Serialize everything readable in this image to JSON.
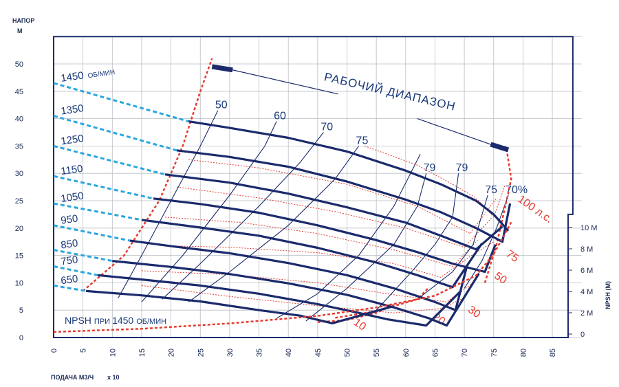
{
  "chart_data": {
    "type": "line",
    "title": "",
    "ylabel_line1": "НАПОР",
    "ylabel_line2": "М",
    "xlabel": "ПОДАЧА М3/Ч",
    "xlabel_multiplier": "x 10",
    "npsh_axis_label": "NPSH (M)",
    "xlim": [
      0,
      90
    ],
    "ylim": [
      0,
      55
    ],
    "x_ticks": [
      0,
      5,
      10,
      15,
      20,
      25,
      30,
      35,
      40,
      45,
      50,
      55,
      60,
      65,
      70,
      75,
      80,
      85
    ],
    "y_ticks": [
      0,
      5,
      10,
      15,
      20,
      25,
      30,
      35,
      40,
      45,
      50
    ],
    "npsh_ticks": [
      {
        "value": 0,
        "label": "0"
      },
      {
        "value": 2,
        "label": "2 M"
      },
      {
        "value": 4,
        "label": "4 M"
      },
      {
        "value": 6,
        "label": "6 M"
      },
      {
        "value": 8,
        "label": "8 M"
      },
      {
        "value": 10,
        "label": "10 M"
      }
    ],
    "grid": true,
    "speed_unit": "ОБ/МИН",
    "series": [
      {
        "name": "1450",
        "dashed_x": [
          0,
          23
        ],
        "dashed_y": [
          46.5,
          39.5
        ],
        "x": [
          23,
          30,
          40,
          50,
          60,
          66,
          72,
          75,
          77.5
        ],
        "y": [
          39.5,
          38.3,
          36.5,
          34,
          30.5,
          28,
          25,
          22.5,
          19.5
        ]
      },
      {
        "name": "1350",
        "dashed_x": [
          0,
          21
        ],
        "dashed_y": [
          40.5,
          34.2
        ],
        "x": [
          21,
          30,
          40,
          50,
          60,
          66,
          72,
          76.5,
          77.8
        ],
        "y": [
          34.2,
          33,
          31.2,
          28.5,
          25.2,
          22.9,
          20,
          17.5,
          24.5
        ]
      },
      {
        "name": "1250",
        "dashed_x": [
          0,
          19
        ],
        "dashed_y": [
          35,
          29.8
        ],
        "x": [
          19,
          30,
          40,
          50,
          60,
          66,
          72,
          76.5
        ],
        "y": [
          29.8,
          28.3,
          26.3,
          23.8,
          21,
          18.6,
          16.1,
          20.3
        ]
      },
      {
        "name": "1150",
        "dashed_x": [
          0,
          17
        ],
        "dashed_y": [
          29.5,
          25.4
        ],
        "x": [
          17,
          25,
          35,
          45,
          55,
          62,
          68,
          73.5,
          75.3
        ],
        "y": [
          25.4,
          24.4,
          22.8,
          20.5,
          17.8,
          15.6,
          13.5,
          12,
          17
        ]
      },
      {
        "name": "1050",
        "dashed_x": [
          0,
          15
        ],
        "dashed_y": [
          24.5,
          21.5
        ],
        "x": [
          15,
          25,
          35,
          45,
          55,
          62,
          68,
          73
        ],
        "y": [
          21.5,
          20.1,
          18.6,
          16.4,
          13.7,
          11.4,
          9.2,
          17.2
        ]
      },
      {
        "name": "950",
        "dashed_x": [
          0,
          13
        ],
        "dashed_y": [
          20.5,
          17.7
        ],
        "x": [
          13,
          20,
          30,
          40,
          50,
          58,
          65,
          68.5,
          70.5
        ],
        "y": [
          17.7,
          16.7,
          15.4,
          13.6,
          11.4,
          9,
          6.5,
          5,
          13.3
        ]
      },
      {
        "name": "850",
        "dashed_x": [
          0,
          10
        ],
        "dashed_y": [
          16,
          14
        ],
        "x": [
          10,
          20,
          30,
          40,
          50,
          58,
          64,
          67,
          72.5
        ],
        "y": [
          14,
          12.9,
          11.6,
          9.9,
          7.8,
          5.5,
          3.5,
          2.2,
          11.7
        ]
      },
      {
        "name": "750",
        "dashed_x": [
          0,
          7.5
        ],
        "dashed_y": [
          13,
          11.4
        ],
        "x": [
          7.5,
          15,
          25,
          35,
          45,
          52,
          57,
          63.5,
          69.5
        ],
        "y": [
          11.4,
          10.6,
          9.5,
          8,
          6.1,
          4.5,
          3.3,
          2.2,
          8.6
        ]
      },
      {
        "name": "650",
        "dashed_x": [
          0,
          5.5
        ],
        "dashed_y": [
          9.5,
          8.5
        ],
        "x": [
          5.5,
          15,
          25,
          35,
          42,
          47.5,
          57.5
        ],
        "y": [
          8.5,
          7.7,
          6.6,
          5,
          4,
          2.6,
          5.6
        ]
      }
    ],
    "efficiency_curves": [
      {
        "label": "50",
        "x": [
          11,
          15,
          20,
          25,
          28
        ],
        "y": [
          7.2,
          15,
          25,
          35,
          41.5
        ]
      },
      {
        "label": "60",
        "x": [
          15,
          22,
          30,
          36,
          38
        ],
        "y": [
          6.5,
          15,
          26,
          35,
          39.5
        ]
      },
      {
        "label": "70",
        "x": [
          18.5,
          25,
          35,
          42,
          46
        ],
        "y": [
          7,
          13.5,
          24,
          32,
          37.5
        ]
      },
      {
        "label": "75",
        "x": [
          23,
          30,
          40,
          48,
          52
        ],
        "y": [
          6.5,
          12,
          20.5,
          29,
          35
        ]
      },
      {
        "label": "",
        "x": [
          38,
          45,
          52,
          58,
          62.5
        ],
        "y": [
          3.5,
          8,
          15,
          24,
          33.5
        ]
      },
      {
        "label": "79",
        "x": [
          43,
          50,
          58,
          62,
          63.5
        ],
        "y": [
          3,
          9,
          17,
          24,
          30
        ]
      },
      {
        "label": "79",
        "x": [
          55,
          61,
          65,
          68,
          69
        ],
        "y": [
          5,
          12,
          17,
          22,
          30
        ]
      },
      {
        "label": "75",
        "x": [
          62,
          68,
          71.5,
          74
        ],
        "y": [
          7,
          12,
          17,
          26
        ]
      },
      {
        "label": "70%",
        "x": [
          70,
          73,
          75.5,
          77.5
        ],
        "y": [
          9,
          14,
          20,
          26
        ]
      }
    ],
    "power_curves": [
      {
        "label": "10",
        "x": [
          45,
          50,
          55,
          58
        ],
        "y": [
          2.8,
          3.2,
          4.5,
          6
        ]
      },
      {
        "label": "20",
        "x": [
          48,
          55,
          62,
          64
        ],
        "y": [
          3.6,
          4.8,
          7,
          9.2
        ]
      },
      {
        "label": "30",
        "x": [
          15,
          30,
          45,
          58,
          66,
          69.5
        ],
        "y": [
          9.5,
          7.5,
          5.8,
          4.5,
          5.3,
          7
        ]
      },
      {
        "label": "50",
        "x": [
          15,
          30,
          45,
          58,
          67,
          71.5
        ],
        "y": [
          12.2,
          11.5,
          10,
          7.8,
          6.5,
          10
        ]
      },
      {
        "label": "75",
        "x": [
          18,
          30,
          45,
          58,
          66,
          71.5,
          75
        ],
        "y": [
          16.8,
          16.5,
          15.5,
          13.5,
          11,
          15.2,
          17.5
        ]
      },
      {
        "label": "",
        "x": [
          19,
          32,
          45,
          58,
          68,
          72.5
        ],
        "y": [
          22,
          21,
          19,
          16,
          13,
          18
        ]
      },
      {
        "label": "",
        "x": [
          21,
          35,
          48,
          60,
          70,
          74.8
        ],
        "y": [
          27.5,
          25.5,
          23,
          20,
          16.5,
          22
        ]
      },
      {
        "label": "",
        "x": [
          23,
          35,
          50,
          62,
          71,
          75.5
        ],
        "y": [
          32.5,
          31,
          28,
          24,
          19,
          25.5
        ]
      },
      {
        "label": "100 л.с.",
        "x": [
          53,
          62,
          68,
          72,
          75,
          77
        ],
        "y": [
          35,
          31.5,
          28,
          25.5,
          22,
          28
        ]
      }
    ],
    "operating_range": {
      "label": "РАБОЧИЙ ДИАПАЗОН",
      "left_boundary_x": [
        5,
        12,
        18,
        22,
        25,
        27
      ],
      "left_boundary_y": [
        8.5,
        15,
        25,
        35,
        45,
        51
      ],
      "right_boundary_x": [
        73.5,
        75.5,
        77.2,
        78,
        77.2
      ],
      "right_boundary_y": [
        10,
        17,
        25,
        29,
        34.5
      ]
    },
    "npsh_curve": {
      "label_prefix": "NPSH",
      "label_text": "ПРИ",
      "label_speed": "1450",
      "label_unit": "ОБ/МИН",
      "x": [
        0,
        15,
        30,
        45,
        55,
        65,
        72,
        75,
        78
      ],
      "y": [
        0.2,
        0.5,
        1.0,
        1.7,
        2.5,
        3.6,
        5.5,
        7.5,
        10.5
      ]
    }
  }
}
